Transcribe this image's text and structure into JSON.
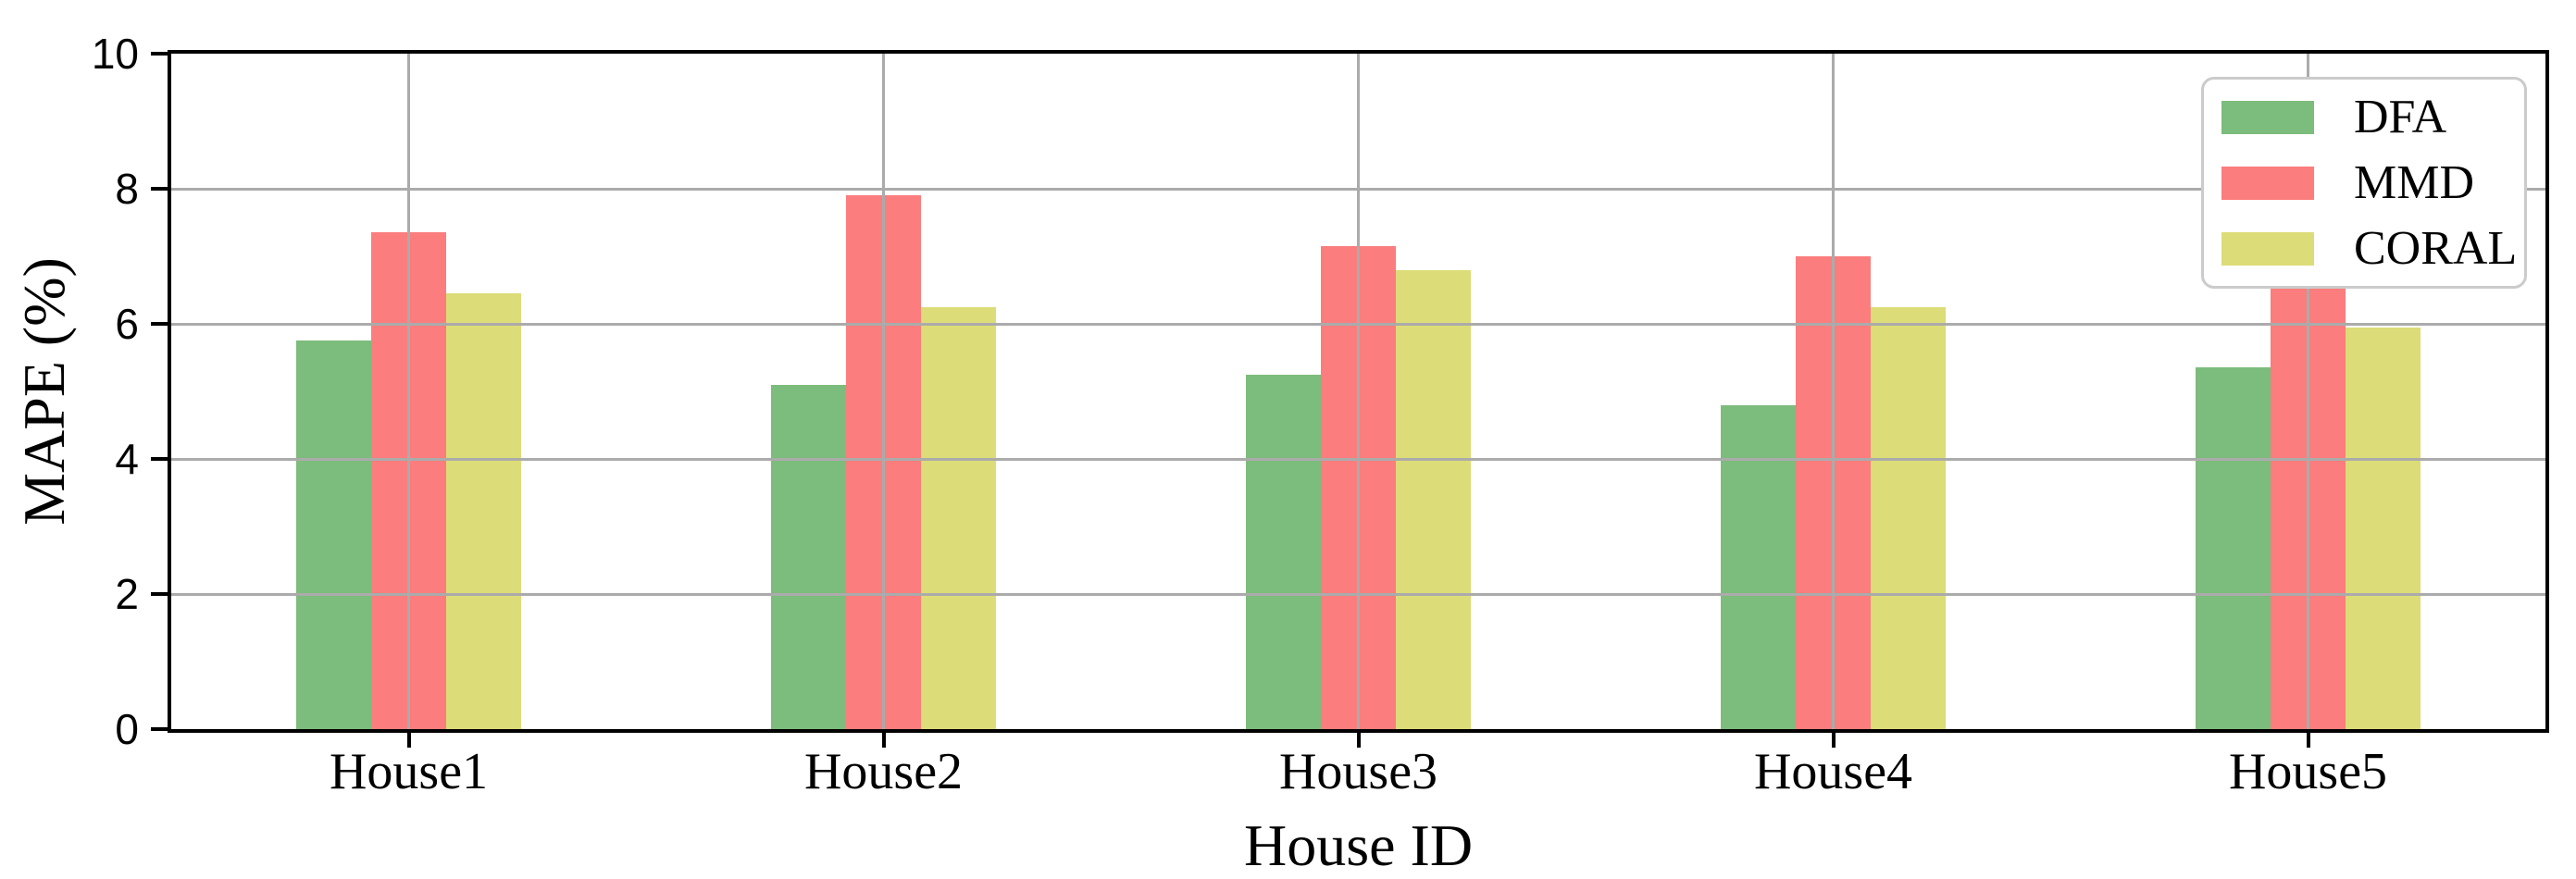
{
  "chart_data": {
    "type": "bar",
    "title": "",
    "xlabel": "House ID",
    "ylabel": "MAPE (%)",
    "categories": [
      "House1",
      "House2",
      "House3",
      "House4",
      "House5"
    ],
    "series": [
      {
        "name": "DFA",
        "color": "#7cbc7c",
        "values": [
          5.75,
          5.1,
          5.25,
          4.8,
          5.35
        ]
      },
      {
        "name": "MMD",
        "color": "#fb7d7d",
        "values": [
          7.35,
          7.9,
          7.15,
          7.0,
          7.55
        ]
      },
      {
        "name": "CORAL",
        "color": "#dcdc78",
        "values": [
          6.45,
          6.25,
          6.8,
          6.25,
          5.95
        ]
      }
    ],
    "ylim": [
      0,
      10
    ],
    "y_ticks": [
      0,
      2,
      4,
      6,
      8,
      10
    ],
    "grid": true,
    "legend_position": "upper right"
  },
  "styles": {
    "background": "#ffffff",
    "grid_color": "#ababab",
    "spine_color": "#000000",
    "tick_color": "#000000",
    "legend_border": "#cbcbcb"
  }
}
